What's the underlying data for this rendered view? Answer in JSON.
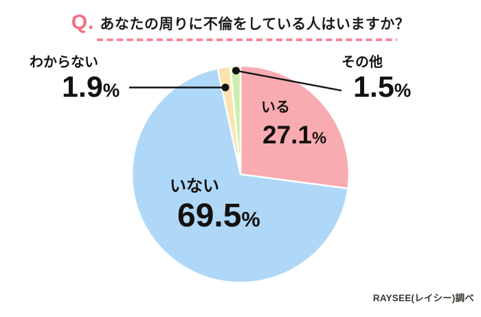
{
  "header": {
    "q_prefix": "Q.",
    "title": "あなたの周りに不倫をしている人はいますか？"
  },
  "chart_data": {
    "type": "pie",
    "title": "Q. あなたの周りに不倫をしている人はいますか？",
    "direction": "clockwise",
    "start_angle_deg": 0,
    "percent_sign": "%",
    "slices": [
      {
        "label": "いる",
        "value": 27.1,
        "display_value": "27.1",
        "color": "#F8ABB0"
      },
      {
        "label": "いない",
        "value": 69.5,
        "display_value": "69.5",
        "color": "#AFD8F8"
      },
      {
        "label": "わからない",
        "value": 1.9,
        "display_value": "1.9",
        "color": "#FAE3AE"
      },
      {
        "label": "その他",
        "value": 1.5,
        "display_value": "1.5",
        "color": "#CBEDB0"
      }
    ],
    "legend_position": "direct-labels-with-leader-lines",
    "source_note": "RAYSEE(レイシー)調べ"
  },
  "colors": {
    "accent_pink": "#F4707F",
    "dash_pink": "#F5879A",
    "leader_line": "#111111",
    "background": "#FFFFFF"
  }
}
